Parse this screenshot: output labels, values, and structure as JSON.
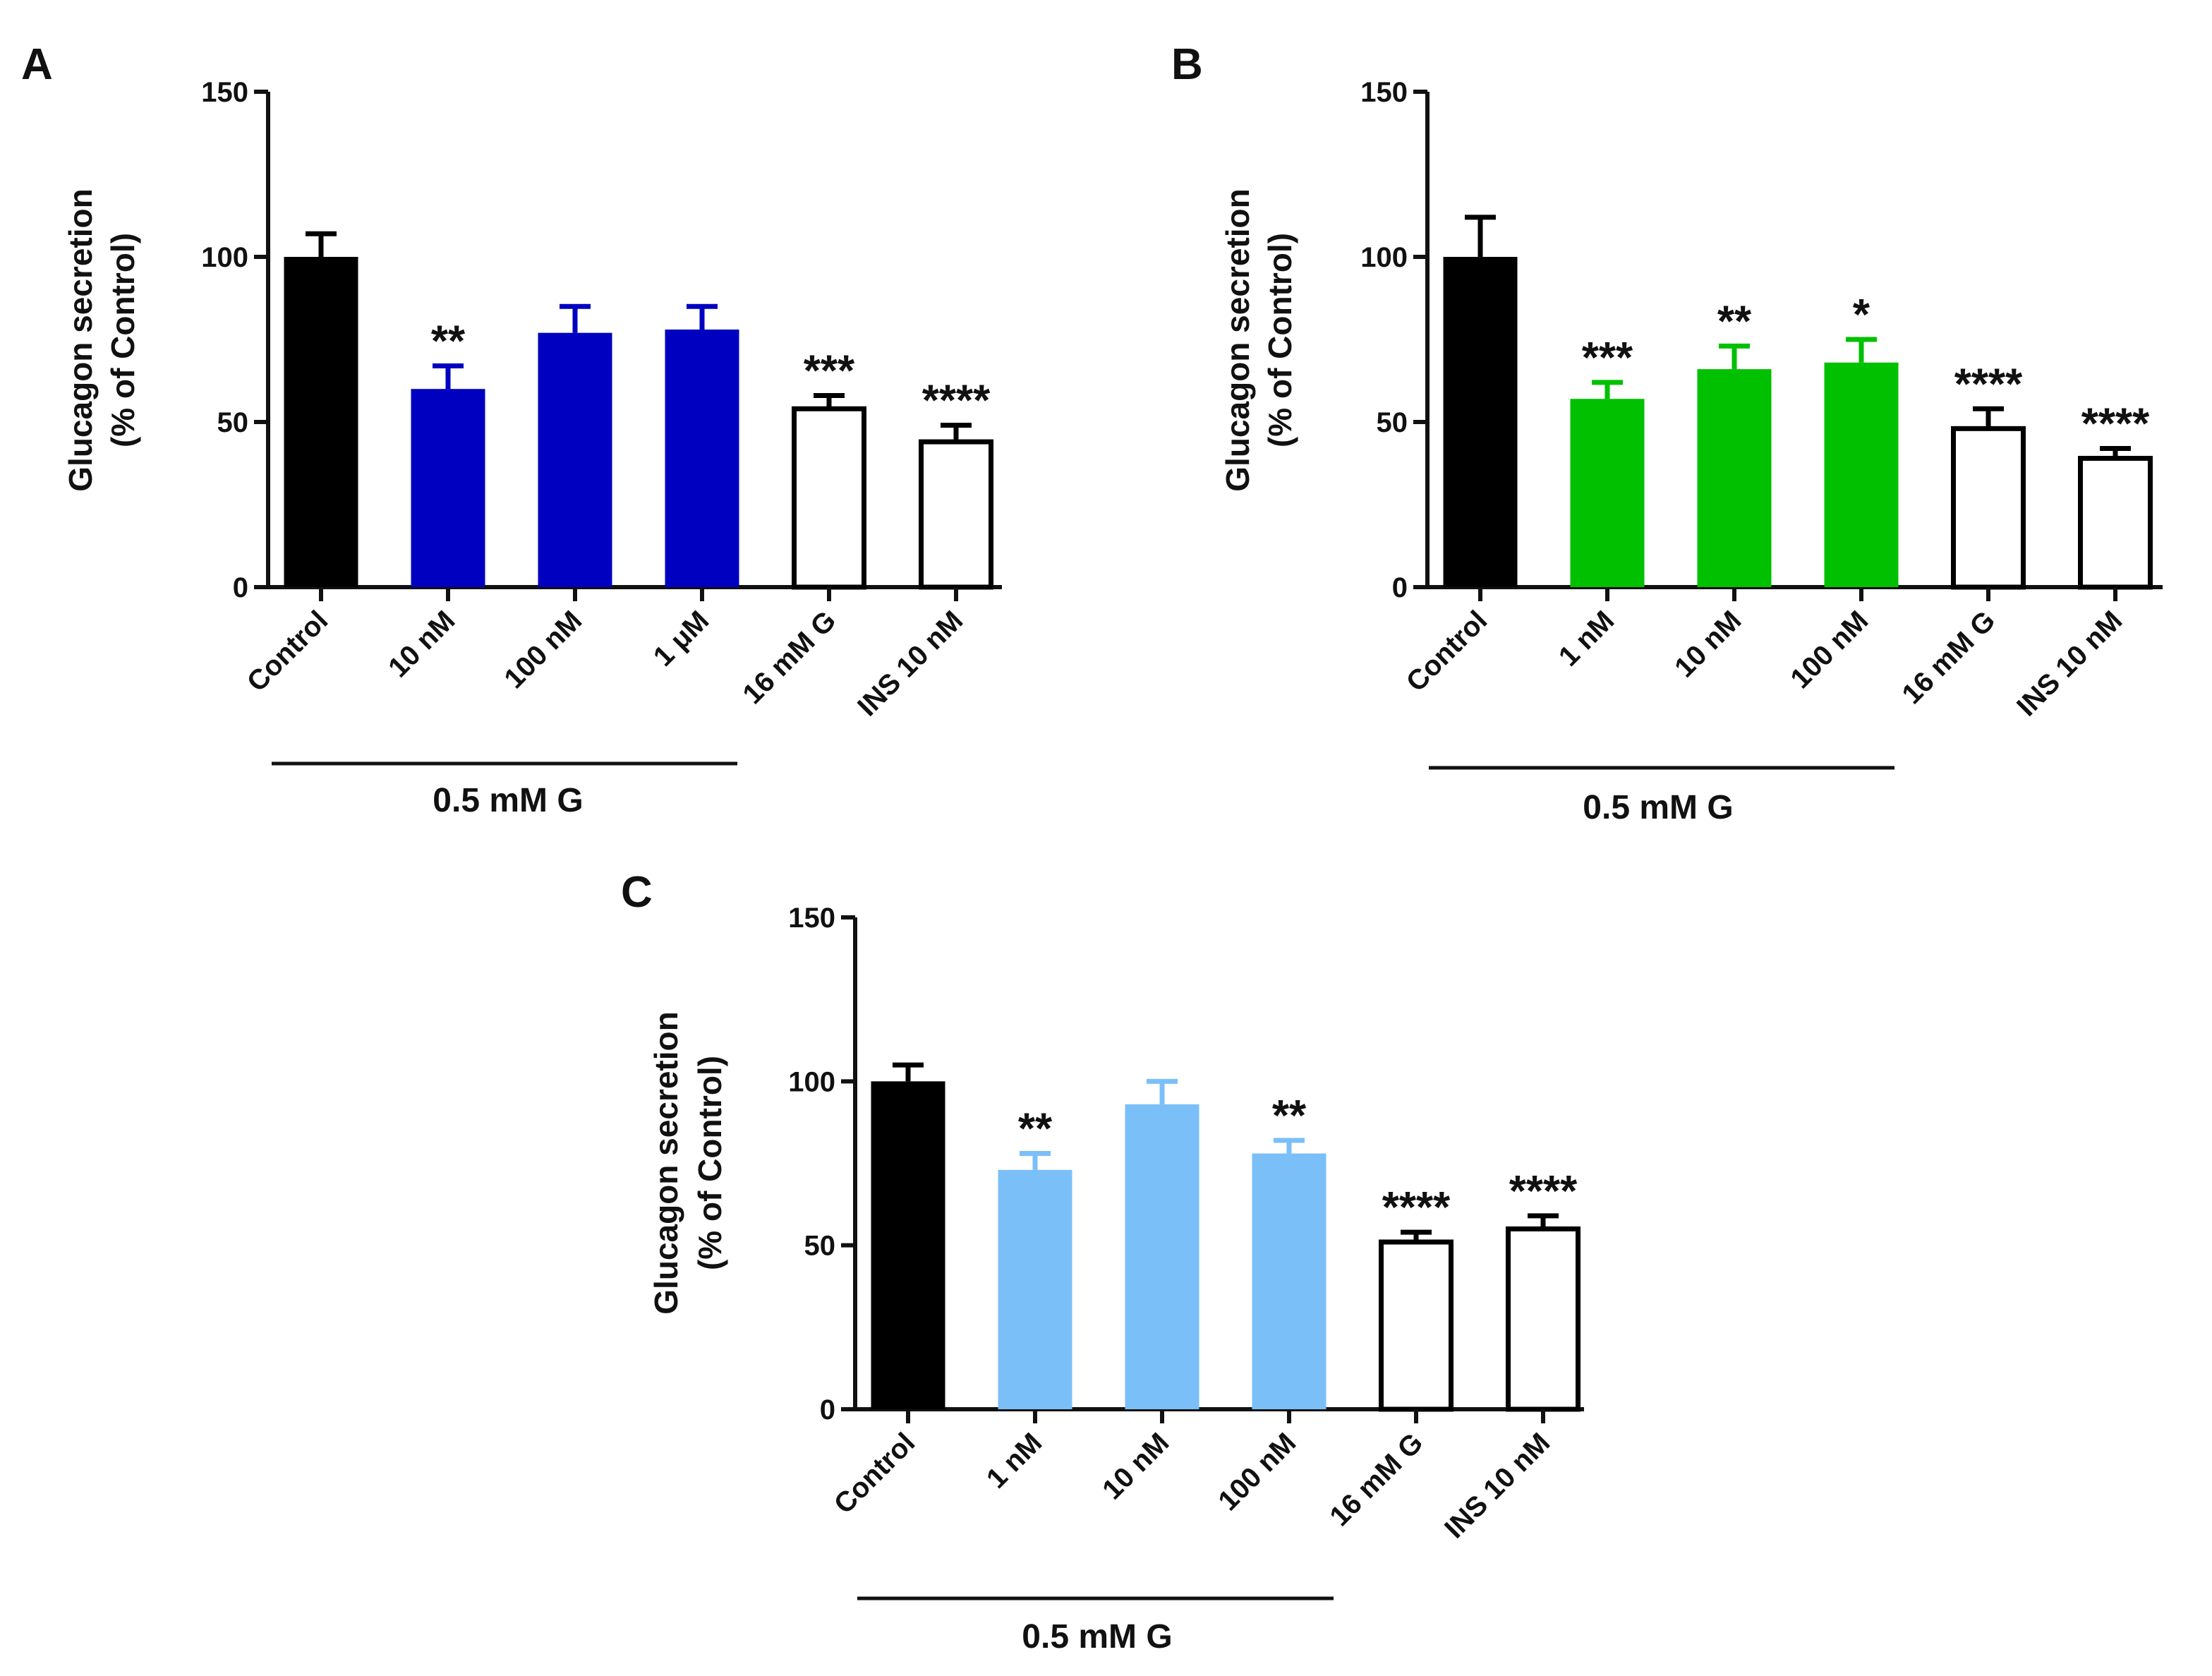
{
  "figure": {
    "background": "#ffffff"
  },
  "chart_data": [
    {
      "id": "A",
      "type": "bar",
      "panel_label": "A",
      "ylabel_line1": "Glucagon secretion",
      "ylabel_line2": "(% of Control)",
      "ylim": [
        0,
        150
      ],
      "yticks": [
        0,
        50,
        100,
        150
      ],
      "categories": [
        "Control",
        "10 nM",
        "100 nM",
        "1 μM",
        "16 mM G",
        "INS 10 nM"
      ],
      "values": [
        100,
        60,
        77,
        78,
        54,
        44
      ],
      "errors": [
        7,
        7,
        8,
        7,
        4,
        5
      ],
      "significance": [
        "",
        "**",
        "",
        "",
        "***",
        "****"
      ],
      "bar_styles": [
        "solid",
        "solid",
        "solid",
        "solid",
        "open",
        "open"
      ],
      "bar_colors": [
        "#000000",
        "#0000c0",
        "#0000c0",
        "#0000c0",
        "#000000",
        "#000000"
      ],
      "group_label": "0.5 mM G",
      "group_span": [
        0,
        3
      ]
    },
    {
      "id": "B",
      "type": "bar",
      "panel_label": "B",
      "ylabel_line1": "Glucagon secretion",
      "ylabel_line2": "(% of Control)",
      "ylim": [
        0,
        150
      ],
      "yticks": [
        0,
        50,
        100,
        150
      ],
      "categories": [
        "Control",
        "1 nM",
        "10 nM",
        "100 nM",
        "16 mM G",
        "INS 10 nM"
      ],
      "values": [
        100,
        57,
        66,
        68,
        48,
        39
      ],
      "errors": [
        12,
        5,
        7,
        7,
        6,
        3
      ],
      "significance": [
        "",
        "***",
        "**",
        "*",
        "****",
        "****"
      ],
      "bar_styles": [
        "solid",
        "solid",
        "solid",
        "solid",
        "open",
        "open"
      ],
      "bar_colors": [
        "#000000",
        "#00c000",
        "#00c000",
        "#00c000",
        "#000000",
        "#000000"
      ],
      "group_label": "0.5 mM G",
      "group_span": [
        0,
        3
      ]
    },
    {
      "id": "C",
      "type": "bar",
      "panel_label": "C",
      "ylabel_line1": "Glucagon secretion",
      "ylabel_line2": "(% of Control)",
      "ylim": [
        0,
        150
      ],
      "yticks": [
        0,
        50,
        100,
        150
      ],
      "categories": [
        "Control",
        "1 nM",
        "10 nM",
        "100 nM",
        "16 mM G",
        "INS 10 nM"
      ],
      "values": [
        100,
        73,
        93,
        78,
        51,
        55
      ],
      "errors": [
        5,
        5,
        7,
        4,
        3,
        4
      ],
      "significance": [
        "",
        "**",
        "",
        "**",
        "****",
        "****"
      ],
      "bar_styles": [
        "solid",
        "solid",
        "solid",
        "solid",
        "open",
        "open"
      ],
      "bar_colors": [
        "#000000",
        "#7bbff9",
        "#7bbff9",
        "#7bbff9",
        "#000000",
        "#000000"
      ],
      "group_label": "0.5 mM G",
      "group_span": [
        0,
        3
      ]
    }
  ]
}
